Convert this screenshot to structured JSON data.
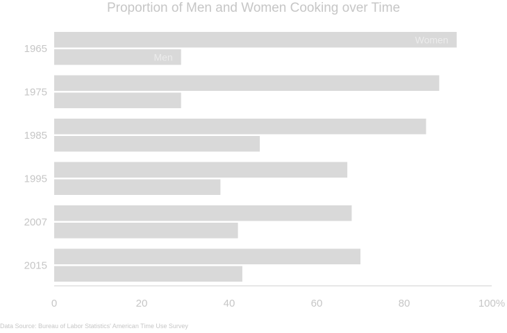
{
  "chart_data": {
    "type": "bar",
    "orientation": "horizontal",
    "title": "Proportion of Men and Women Cooking over Time",
    "categories": [
      "1965",
      "1975",
      "1985",
      "1995",
      "2007",
      "2015"
    ],
    "series": [
      {
        "name": "Women",
        "values": [
          92,
          88,
          85,
          67,
          68,
          70
        ]
      },
      {
        "name": "Men",
        "values": [
          29,
          29,
          47,
          38,
          42,
          43
        ]
      }
    ],
    "xlim": [
      0,
      100
    ],
    "xticks": [
      "0",
      "20",
      "40",
      "60",
      "80",
      "100%"
    ],
    "xlabel": "",
    "ylabel": "",
    "grid": false,
    "legend": "inline",
    "colors": {
      "bar": "#d9d9d9",
      "text": "#c6c6c6",
      "axis": "#cfcfcf",
      "inline_label": "#ececec"
    }
  },
  "source": "Data Source: Bureau of Labor Statistics' American Time Use Survey"
}
